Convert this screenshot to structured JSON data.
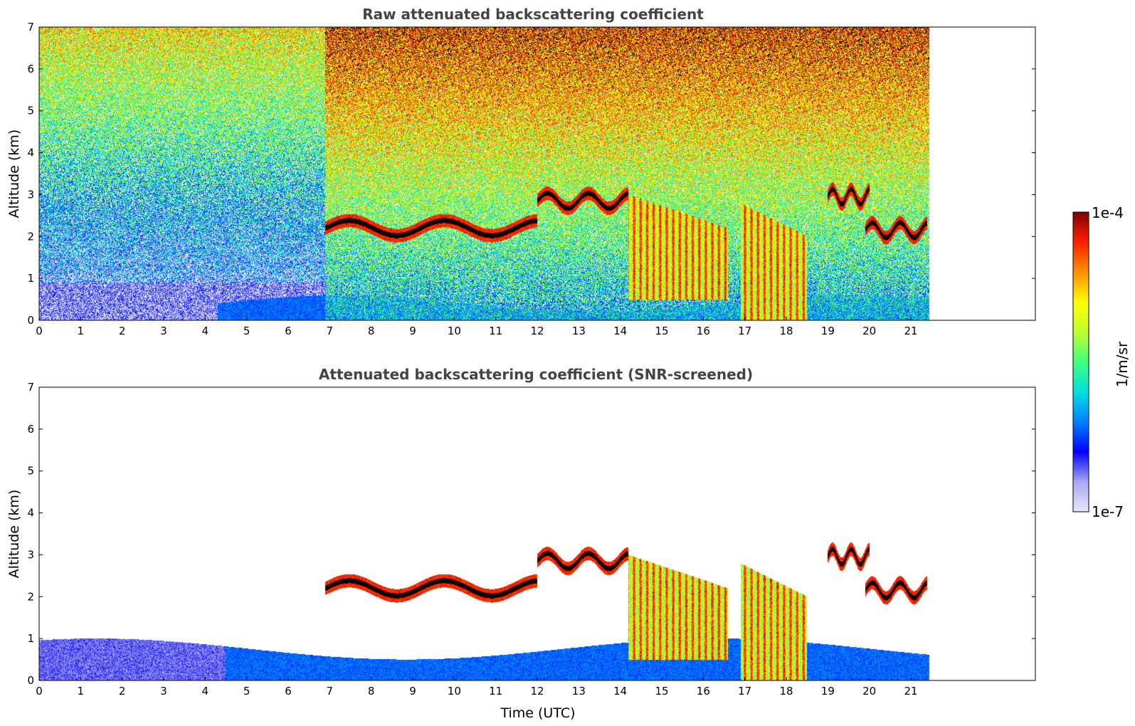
{
  "chart_data": [
    {
      "type": "heatmap",
      "title": "Raw attenuated backscattering coefficient",
      "xlabel": "",
      "ylabel": "Altitude (km)",
      "xlim": [
        0,
        24
      ],
      "ylim": [
        0,
        7
      ],
      "x_ticks": [
        0,
        1,
        2,
        3,
        4,
        5,
        6,
        7,
        8,
        9,
        10,
        11,
        12,
        13,
        14,
        15,
        16,
        17,
        18,
        19,
        20,
        21
      ],
      "y_ticks": [
        0,
        1,
        2,
        3,
        4,
        5,
        6,
        7
      ],
      "data_end_hour": 21.45,
      "colorscale": "jet",
      "log_scale": true,
      "features": [
        {
          "kind": "background_noise",
          "hours": [
            0,
            6.9
          ],
          "level": "low-medium",
          "near_surface_level": "very-low"
        },
        {
          "kind": "background_noise",
          "hours": [
            6.9,
            21.45
          ],
          "level": "high"
        },
        {
          "kind": "boundary_layer",
          "hours": [
            4.3,
            21.45
          ],
          "top_km": [
            0.2,
            0.6
          ]
        },
        {
          "kind": "cloud_layer",
          "hours": [
            6.9,
            12.0
          ],
          "altitude_km": [
            2.0,
            2.4
          ]
        },
        {
          "kind": "cloud_layer",
          "hours": [
            12.0,
            14.2
          ],
          "altitude_km": [
            2.5,
            3.2
          ]
        },
        {
          "kind": "aerosol_plume",
          "hours": [
            14.2,
            16.6
          ],
          "altitude_km": [
            0.5,
            3.0
          ]
        },
        {
          "kind": "aerosol_plume",
          "hours": [
            16.9,
            18.5
          ],
          "altitude_km": [
            0.0,
            2.8
          ]
        },
        {
          "kind": "cloud_layer",
          "hours": [
            19.0,
            20.0
          ],
          "altitude_km": [
            2.8,
            3.1
          ]
        },
        {
          "kind": "cloud_layer",
          "hours": [
            19.9,
            21.4
          ],
          "altitude_km": [
            1.9,
            2.4
          ]
        }
      ]
    },
    {
      "type": "heatmap",
      "title": "Attenuated backscattering coefficient (SNR-screened)",
      "xlabel": "Time (UTC)",
      "ylabel": "Altitude (km)",
      "xlim": [
        0,
        24
      ],
      "ylim": [
        0,
        7
      ],
      "x_ticks": [
        0,
        1,
        2,
        3,
        4,
        5,
        6,
        7,
        8,
        9,
        10,
        11,
        12,
        13,
        14,
        15,
        16,
        17,
        18,
        19,
        20,
        21
      ],
      "y_ticks": [
        0,
        1,
        2,
        3,
        4,
        5,
        6,
        7
      ],
      "data_end_hour": 21.45,
      "colorscale": "jet",
      "log_scale": true,
      "features": [
        {
          "kind": "boundary_layer",
          "hours": [
            0,
            21.45
          ],
          "top_km": [
            0.5,
            1.0
          ]
        },
        {
          "kind": "cloud_layer",
          "hours": [
            6.9,
            12.0
          ],
          "altitude_km": [
            2.0,
            2.4
          ]
        },
        {
          "kind": "cloud_layer",
          "hours": [
            12.0,
            14.2
          ],
          "altitude_km": [
            2.5,
            3.2
          ]
        },
        {
          "kind": "aerosol_plume",
          "hours": [
            14.2,
            16.6
          ],
          "altitude_km": [
            0.5,
            3.0
          ]
        },
        {
          "kind": "aerosol_plume",
          "hours": [
            16.9,
            18.5
          ],
          "altitude_km": [
            0.0,
            2.8
          ]
        },
        {
          "kind": "cloud_layer",
          "hours": [
            19.0,
            20.0
          ],
          "altitude_km": [
            2.8,
            3.1
          ]
        },
        {
          "kind": "cloud_layer",
          "hours": [
            19.9,
            21.4
          ],
          "altitude_km": [
            1.9,
            2.4
          ]
        }
      ]
    }
  ],
  "colorbar": {
    "label": "1/m/sr",
    "max_label": "1e-4",
    "min_label": "1e-7",
    "colors": [
      "#e8e8f8",
      "#a8a8f0",
      "#0000ff",
      "#0080ff",
      "#00e0e0",
      "#40ff80",
      "#c0ff30",
      "#ffff00",
      "#ff9000",
      "#ff2000",
      "#800000"
    ]
  }
}
